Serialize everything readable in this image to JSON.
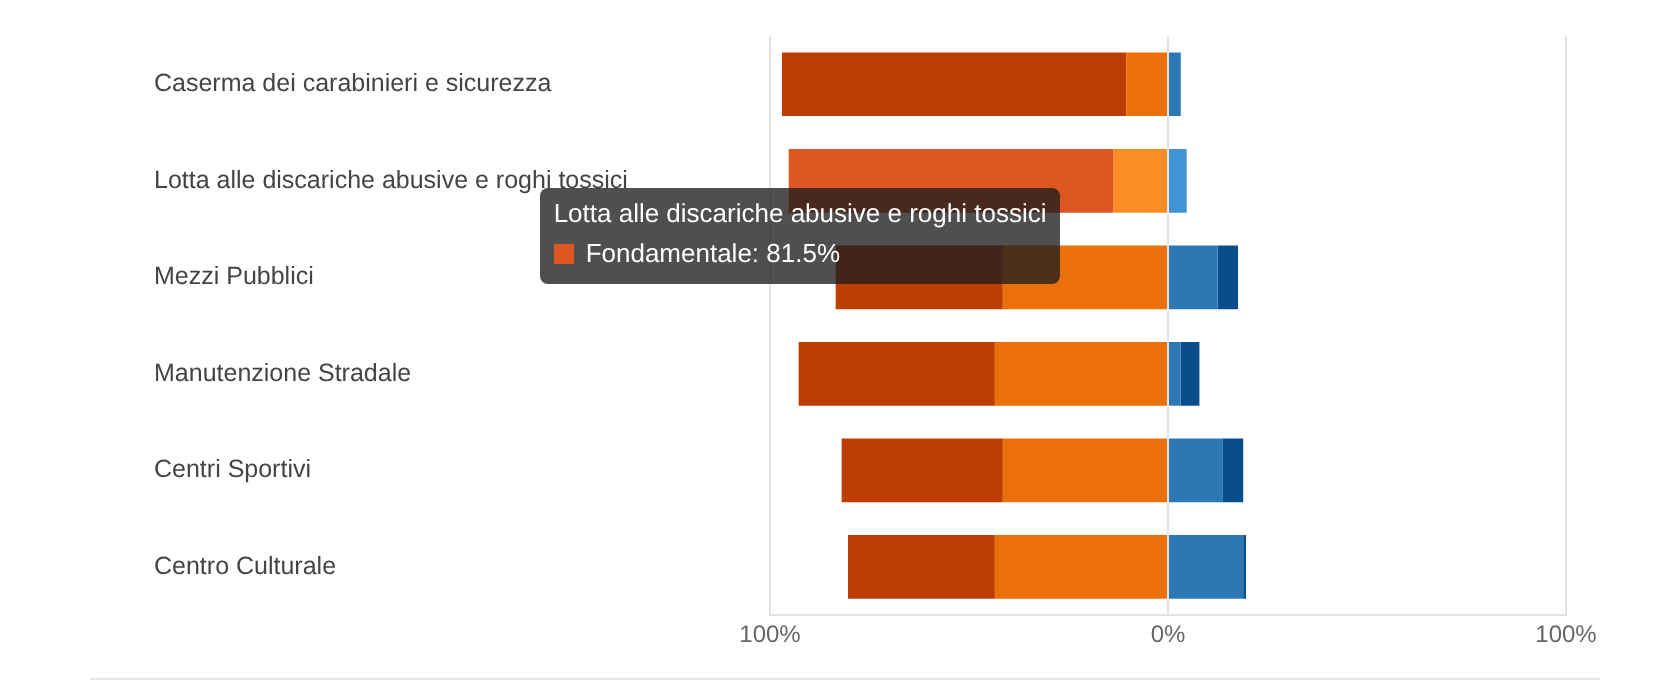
{
  "chart_data": {
    "type": "bar",
    "orientation": "horizontal",
    "stacked": true,
    "categories": [
      "Caserma dei carabinieri e sicurezza",
      "Lotta alle discariche abusive e roghi tossici",
      "Mezzi Pubblici",
      "Manutenzione Stradale",
      "Centri Sportivi",
      "Centro Culturale"
    ],
    "series": [
      {
        "colors": [
          "#ec700a",
          "#fc8c25",
          "#ec700a",
          "#ec700a",
          "#ec700a",
          "#ec700a"
        ],
        "values": [
          -10.5,
          -13.8,
          -41.5,
          -43.5,
          -41.5,
          -43.5
        ]
      },
      {
        "colors": [
          "#bd3d03",
          "#dd5520",
          "#bd3d03",
          "#bd3d03",
          "#bd3d03",
          "#bd3d03"
        ],
        "values": [
          -86.5,
          -81.5,
          -42,
          -49.3,
          -40.5,
          -36.9
        ]
      },
      {
        "colors": [
          "#2b78b4",
          "#3f93d6",
          "#2b78b4",
          "#2b78b4",
          "#2b78b4",
          "#2b78b4"
        ],
        "values": [
          3.2,
          4.7,
          12.5,
          3.2,
          13.8,
          18.9
        ]
      },
      {
        "colors": [
          "#0a4d8c",
          "#1a64a8",
          "#0a4d8c",
          "#0a4d8c",
          "#0a4d8c",
          "#0a4d8c"
        ],
        "values": [
          0,
          0,
          5.1,
          4.7,
          5.1,
          0.7
        ]
      }
    ],
    "xlim": [
      -100,
      100
    ],
    "xticks": [
      {
        "value": -100,
        "label": "100%"
      },
      {
        "value": 0,
        "label": "0%"
      },
      {
        "value": 100,
        "label": "100%"
      }
    ],
    "grid": "x",
    "legend": false,
    "annotations": [
      {
        "text": "Fondamentale: 81.5%",
        "x": -81.5,
        "y": "Lotta alle discariche abusive e roghi tossici"
      }
    ]
  }
}
